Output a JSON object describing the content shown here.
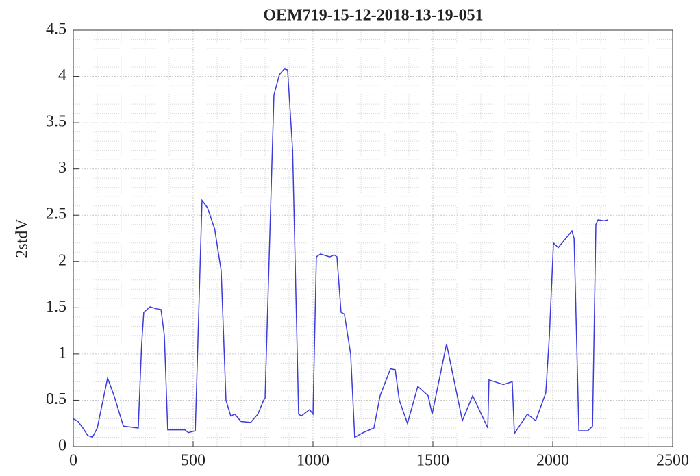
{
  "chart_data": {
    "type": "line",
    "title": "OEM719-15-12-2018-13-19-051",
    "y_label": "2stdV",
    "xlim": [
      0,
      2500
    ],
    "xticks": [
      0,
      500,
      1000,
      1500,
      2000,
      2500
    ],
    "ylim": [
      0,
      4.5
    ],
    "yticks": [
      0,
      0.5,
      1,
      1.5,
      2,
      2.5,
      3,
      3.5,
      4,
      4.5
    ],
    "grid": true,
    "series": [
      {
        "color": "#3b3bdc",
        "x": [
          0,
          20,
          40,
          60,
          80,
          100,
          143,
          170,
          209,
          240,
          271,
          285,
          294,
          320,
          345,
          366,
          380,
          394,
          430,
          466,
          480,
          509,
          537,
          560,
          590,
          617,
          637,
          657,
          674,
          700,
          740,
          770,
          794,
          800,
          837,
          860,
          880,
          894,
          915,
          940,
          951,
          986,
          1000,
          1014,
          1031,
          1069,
          1089,
          1100,
          1117,
          1131,
          1157,
          1174,
          1209,
          1254,
          1280,
          1323,
          1343,
          1360,
          1394,
          1437,
          1480,
          1497,
          1557,
          1623,
          1666,
          1729,
          1734,
          1794,
          1831,
          1840,
          1894,
          1929,
          1971,
          1986,
          2003,
          2023,
          2080,
          2089,
          2109,
          2146,
          2166,
          2180,
          2189,
          2214,
          2231
        ],
        "values": [
          0.3,
          0.27,
          0.2,
          0.12,
          0.1,
          0.2,
          0.74,
          0.55,
          0.22,
          0.21,
          0.2,
          1.1,
          1.45,
          1.51,
          1.49,
          1.48,
          1.2,
          0.18,
          0.18,
          0.18,
          0.15,
          0.17,
          2.66,
          2.58,
          2.35,
          1.9,
          0.5,
          0.33,
          0.35,
          0.27,
          0.26,
          0.35,
          0.5,
          0.52,
          3.8,
          4.02,
          4.08,
          4.07,
          3.2,
          0.35,
          0.33,
          0.4,
          0.35,
          2.05,
          2.08,
          2.05,
          2.07,
          2.05,
          1.45,
          1.43,
          1.0,
          0.1,
          0.15,
          0.2,
          0.55,
          0.84,
          0.83,
          0.5,
          0.25,
          0.65,
          0.55,
          0.35,
          1.11,
          0.28,
          0.55,
          0.2,
          0.72,
          0.67,
          0.7,
          0.14,
          0.35,
          0.28,
          0.58,
          1.2,
          2.2,
          2.15,
          2.33,
          2.25,
          0.17,
          0.17,
          0.22,
          2.4,
          2.45,
          2.44,
          2.45
        ]
      }
    ]
  }
}
